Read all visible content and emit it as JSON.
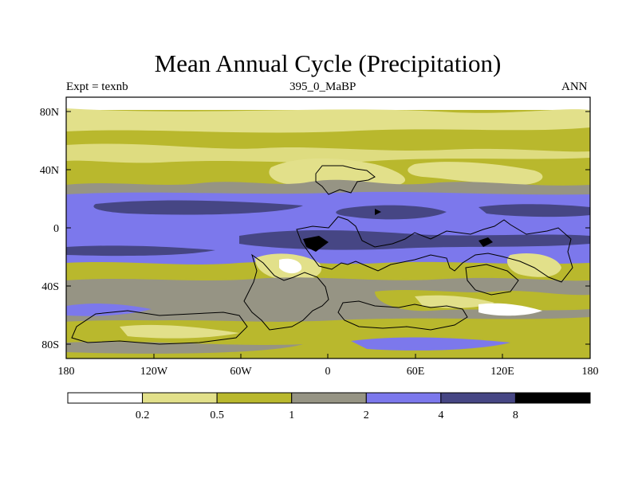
{
  "title": "Mean Annual Cycle (Precipitation)",
  "subtitle_left": "Expt = texnb",
  "subtitle_center": "395_0_MaBP",
  "subtitle_right": "ANN",
  "axes": {
    "lat_ticks": [
      "80N",
      "40N",
      "0",
      "40S",
      "80S"
    ],
    "lon_ticks": [
      "180",
      "120W",
      "60W",
      "0",
      "60E",
      "120E",
      "180"
    ]
  },
  "colorbar": {
    "levels": [
      "0.2",
      "0.5",
      "1",
      "2",
      "4",
      "8"
    ],
    "colors": [
      "#ffffff",
      "#e2e08a",
      "#b9b82d",
      "#969484",
      "#7c78ec",
      "#464684",
      "#000000"
    ]
  }
}
